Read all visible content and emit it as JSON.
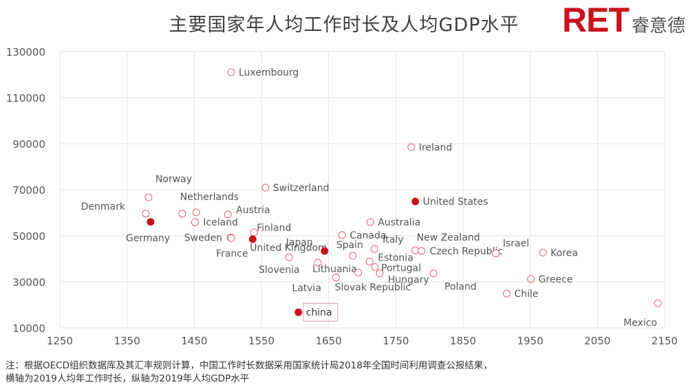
{
  "chart_data": {
    "type": "scatter",
    "title": "主要国家年人均工作时长及人均GDP水平",
    "xlabel": "",
    "ylabel": "",
    "xlim": [
      1250,
      2150
    ],
    "ylim": [
      10000,
      130000
    ],
    "xticks": [
      1250,
      1350,
      1450,
      1550,
      1650,
      1750,
      1850,
      1950,
      2050,
      2150
    ],
    "yticks": [
      10000,
      30000,
      50000,
      70000,
      90000,
      110000,
      130000
    ],
    "grid": true,
    "colors": {
      "marker": "#c8141e",
      "grid": "#e3e3e3",
      "label": "#555555"
    },
    "points": [
      {
        "name": "Luxembourg",
        "x": 1505,
        "y": 121000,
        "filled": false
      },
      {
        "name": "Ireland",
        "x": 1773,
        "y": 88500,
        "filled": false
      },
      {
        "name": "Norway",
        "x": 1382,
        "y": 66700,
        "filled": false
      },
      {
        "name": "Switzerland",
        "x": 1556,
        "y": 70900,
        "filled": false
      },
      {
        "name": "United States",
        "x": 1779,
        "y": 64900,
        "filled": true
      },
      {
        "name": "Denmark",
        "x": 1378,
        "y": 59600,
        "filled": false
      },
      {
        "name": "Germany",
        "x": 1385,
        "y": 56000,
        "filled": true
      },
      {
        "name": "Netherlands",
        "x": 1432,
        "y": 59600,
        "filled": false
      },
      {
        "name": "",
        "x": 1453,
        "y": 60200,
        "filled": false
      },
      {
        "name": "Iceland",
        "x": 1451,
        "y": 55900,
        "filled": false
      },
      {
        "name": "Austria",
        "x": 1500,
        "y": 59300,
        "filled": false
      },
      {
        "name": "Sweden",
        "x": 1504,
        "y": 49300,
        "filled": false
      },
      {
        "name": "France",
        "x": 1505,
        "y": 49000,
        "filled": false
      },
      {
        "name": "Finland",
        "x": 1539,
        "y": 51500,
        "filled": false
      },
      {
        "name": "United Kingdom",
        "x": 1537,
        "y": 48500,
        "filled": true
      },
      {
        "name": "Slovenia",
        "x": 1591,
        "y": 40700,
        "filled": false
      },
      {
        "name": "Lithuania",
        "x": 1634,
        "y": 38300,
        "filled": false
      },
      {
        "name": "Japan",
        "x": 1644,
        "y": 43400,
        "filled": true
      },
      {
        "name": "Canada",
        "x": 1670,
        "y": 50300,
        "filled": false
      },
      {
        "name": "Spain",
        "x": 1686,
        "y": 41300,
        "filled": false
      },
      {
        "name": "Australia",
        "x": 1712,
        "y": 56000,
        "filled": false
      },
      {
        "name": "Italy",
        "x": 1718,
        "y": 44300,
        "filled": false
      },
      {
        "name": "Estonia",
        "x": 1711,
        "y": 38800,
        "filled": false
      },
      {
        "name": "Portugal",
        "x": 1719,
        "y": 36400,
        "filled": false
      },
      {
        "name": "Hungary",
        "x": 1726,
        "y": 33700,
        "filled": false
      },
      {
        "name": "Slovak Republic",
        "x": 1694,
        "y": 34000,
        "filled": false
      },
      {
        "name": "Latvia",
        "x": 1661,
        "y": 31900,
        "filled": false
      },
      {
        "name": "New Zealand",
        "x": 1779,
        "y": 43700,
        "filled": false
      },
      {
        "name": "Czech Republic",
        "x": 1788,
        "y": 43400,
        "filled": false
      },
      {
        "name": "Poland",
        "x": 1806,
        "y": 33700,
        "filled": false
      },
      {
        "name": "Israel",
        "x": 1899,
        "y": 42400,
        "filled": false
      },
      {
        "name": "Korea",
        "x": 1969,
        "y": 42700,
        "filled": false
      },
      {
        "name": "Greece",
        "x": 1951,
        "y": 31200,
        "filled": false
      },
      {
        "name": "Chile",
        "x": 1915,
        "y": 24900,
        "filled": false
      },
      {
        "name": "Mexico",
        "x": 2140,
        "y": 20700,
        "filled": false
      },
      {
        "name": "china",
        "x": 1605,
        "y": 16800,
        "filled": true
      }
    ]
  },
  "logo": {
    "brand": "RET",
    "brand_cn": "睿意德"
  },
  "notes": [
    "注：根据OECD组织数据库及其汇率规则计算，中国工作时长数据采用国家统计局2018年全国时间利用调查公报结果，",
    "横轴为2019人均年工作时长，纵轴为2019年人均GDP水平"
  ]
}
